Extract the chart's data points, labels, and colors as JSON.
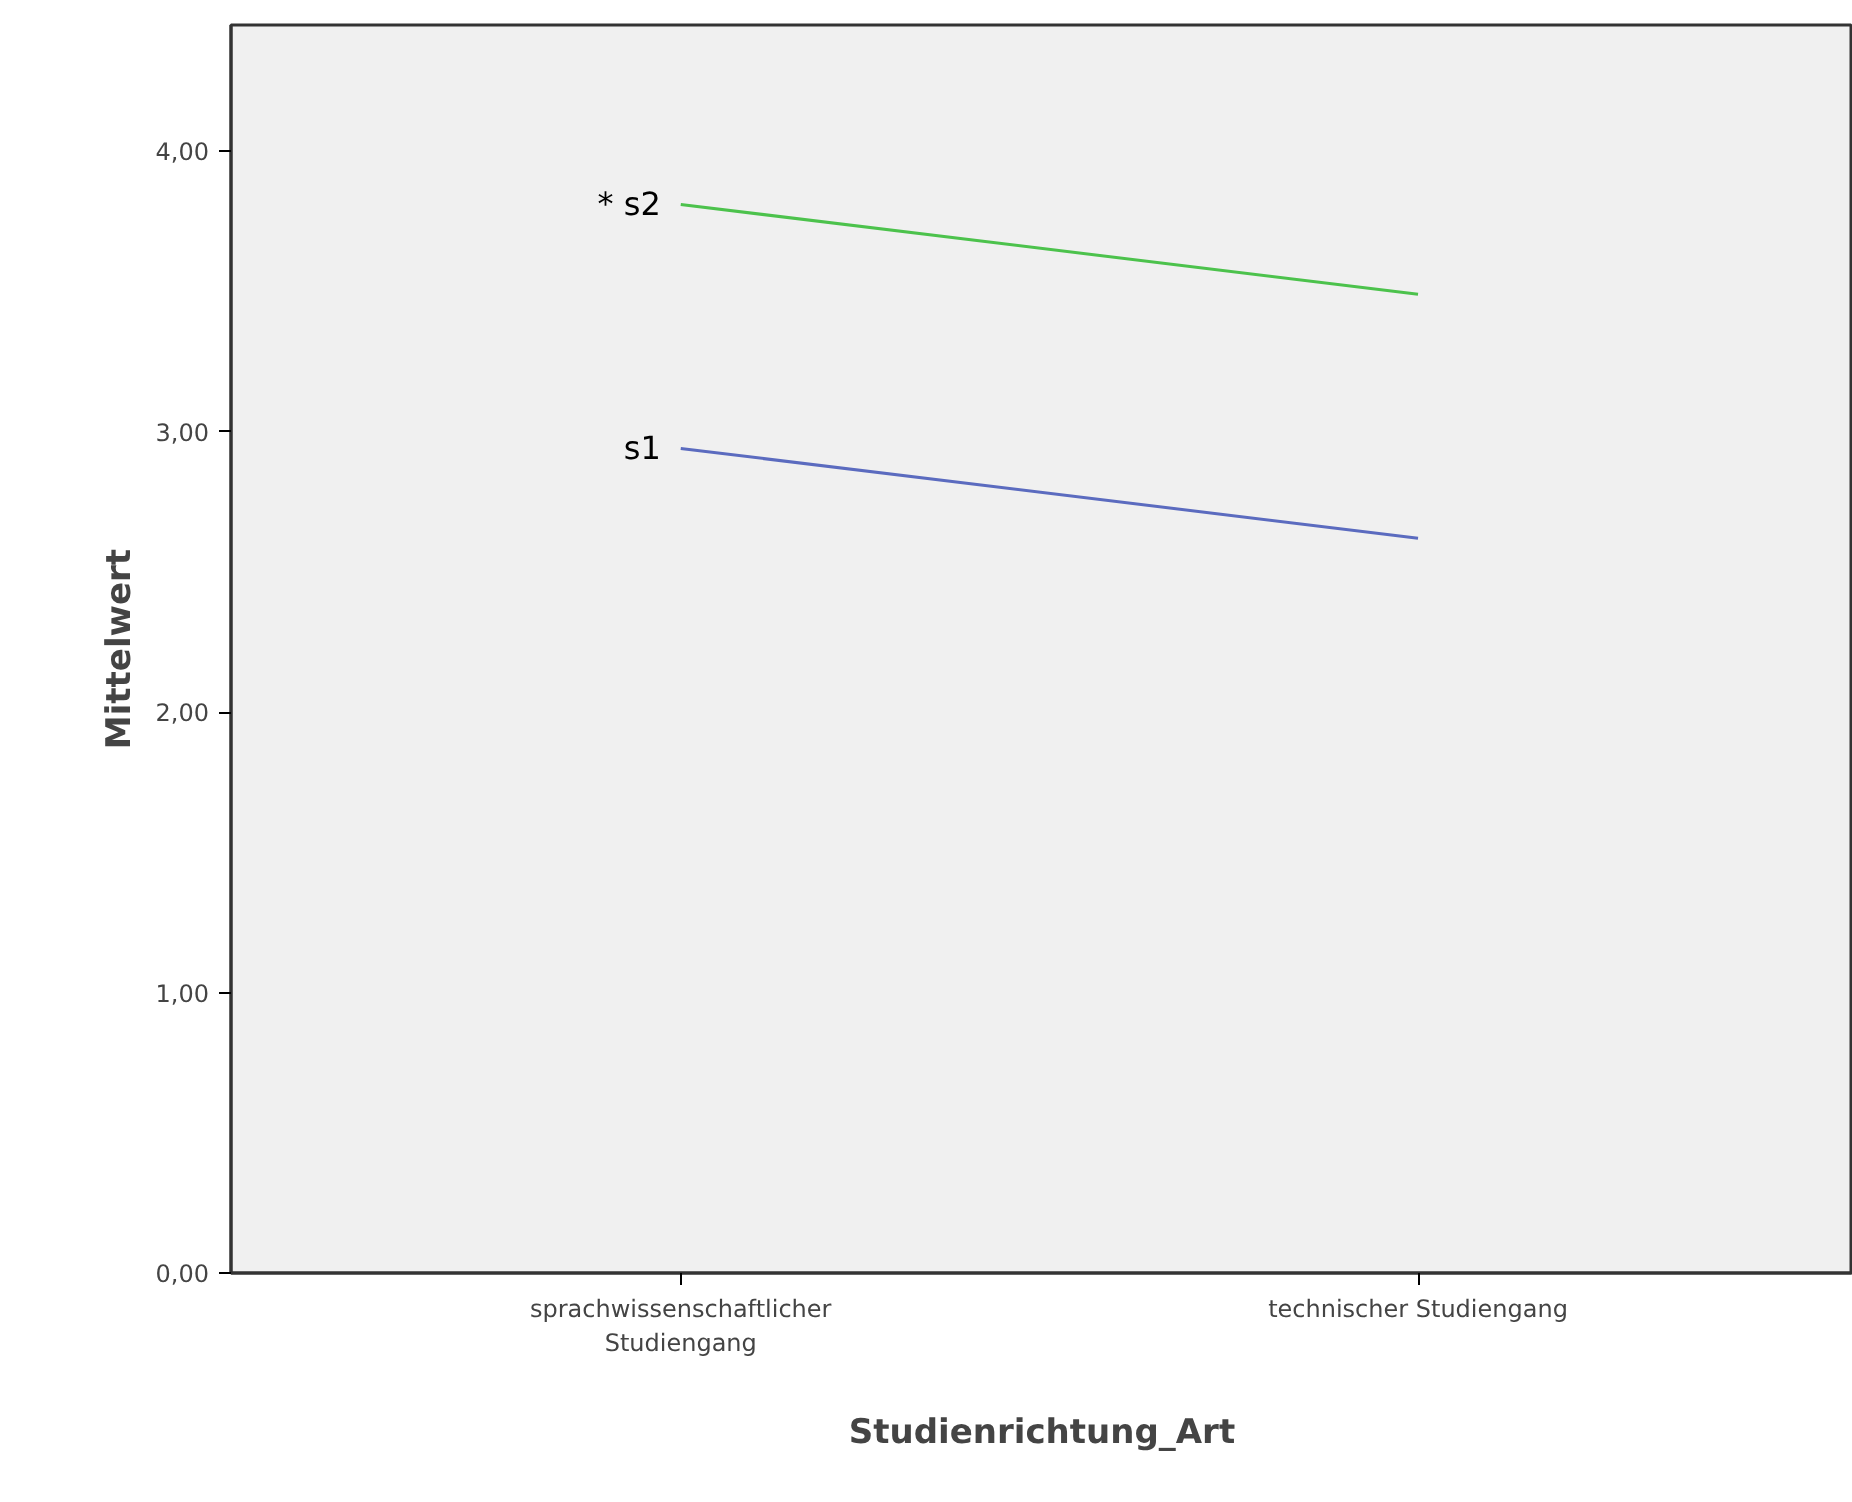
{
  "chart_data": {
    "type": "line",
    "xlabel": "Studienrichtung_Art",
    "ylabel": "Mittelwert",
    "categories": [
      "sprachwissenschaftlicher\nStudiengang",
      "technischer Studiengang"
    ],
    "series": [
      {
        "name": "s1",
        "color": "#5b6bbf",
        "values": [
          2.94,
          2.62
        ]
      },
      {
        "name": "* s2",
        "color": "#4cc24c",
        "values": [
          3.81,
          3.49
        ]
      }
    ],
    "ylim": [
      0,
      4.45
    ],
    "yticks": [
      {
        "value": 0,
        "label": "0,00"
      },
      {
        "value": 1,
        "label": "1,00"
      },
      {
        "value": 2,
        "label": "2,00"
      },
      {
        "value": 3,
        "label": "3,00"
      },
      {
        "value": 4,
        "label": "4,00"
      }
    ],
    "grid": false,
    "legend": false,
    "marker": "none",
    "line_style": "solid"
  }
}
